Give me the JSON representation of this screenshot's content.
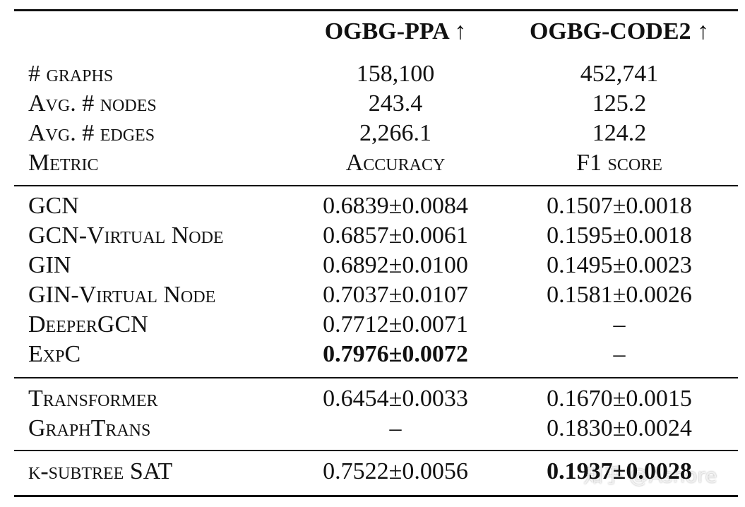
{
  "header": {
    "columns": [
      "OGBG-PPA ↑",
      "OGBG-CODE2 ↑"
    ]
  },
  "sections": [
    {
      "rows": [
        [
          "# graphs",
          "158,100",
          "452,741"
        ],
        [
          "Avg. # nodes",
          "243.4",
          "125.2"
        ],
        [
          "Avg. # edges",
          "2,266.1",
          "124.2"
        ],
        [
          "Metric",
          "Accuracy",
          "F1 score"
        ]
      ]
    },
    {
      "rows": [
        [
          "GCN",
          "0.6839±0.0084",
          "0.1507±0.0018"
        ],
        [
          "GCN-Virtual Node",
          "0.6857±0.0061",
          "0.1595±0.0018"
        ],
        [
          "GIN",
          "0.6892±0.0100",
          "0.1495±0.0023"
        ],
        [
          "GIN-Virtual Node",
          "0.7037±0.0107",
          "0.1581±0.0026"
        ],
        [
          "DeeperGCN",
          "0.7712±0.0071",
          "–"
        ],
        [
          "ExpC",
          {
            "text": "0.7976±0.0072",
            "bold": true
          },
          "–"
        ]
      ]
    },
    {
      "rows": [
        [
          "Transformer",
          "0.6454±0.0033",
          "0.1670±0.0015"
        ],
        [
          "GraphTrans",
          "–",
          "0.1830±0.0024"
        ]
      ]
    },
    {
      "rows": [
        [
          "k-subtree SAT",
          "0.7522±0.0056",
          {
            "text": "0.1937±0.0028",
            "bold": true
          }
        ]
      ]
    }
  ],
  "watermark": "知乎 @Ashore"
}
